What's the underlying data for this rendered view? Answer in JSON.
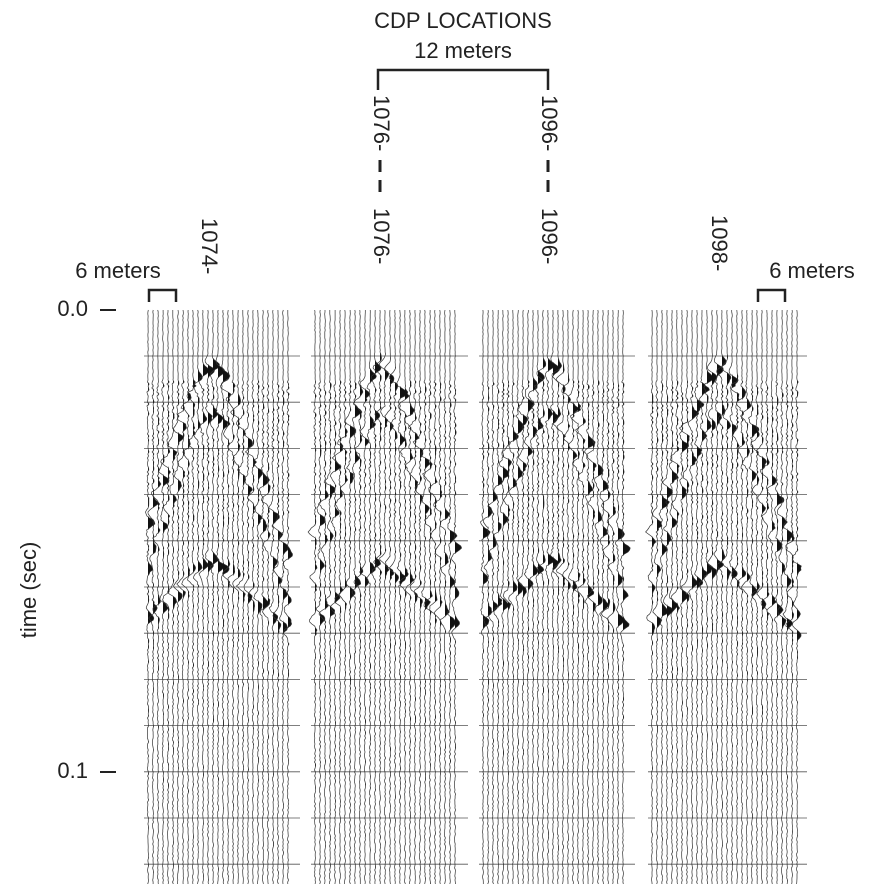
{
  "title": "CDP LOCATIONS",
  "scale_top": "12 meters",
  "scale_left": "6 meters",
  "scale_right": "6 meters",
  "upper_labels": [
    "1076-",
    "1096-"
  ],
  "panel_labels": [
    "1074-",
    "1076-",
    "1096-",
    "1098-"
  ],
  "y_axis": {
    "label": "time (sec)",
    "ticks": [
      "0.0",
      "0.1"
    ]
  }
}
